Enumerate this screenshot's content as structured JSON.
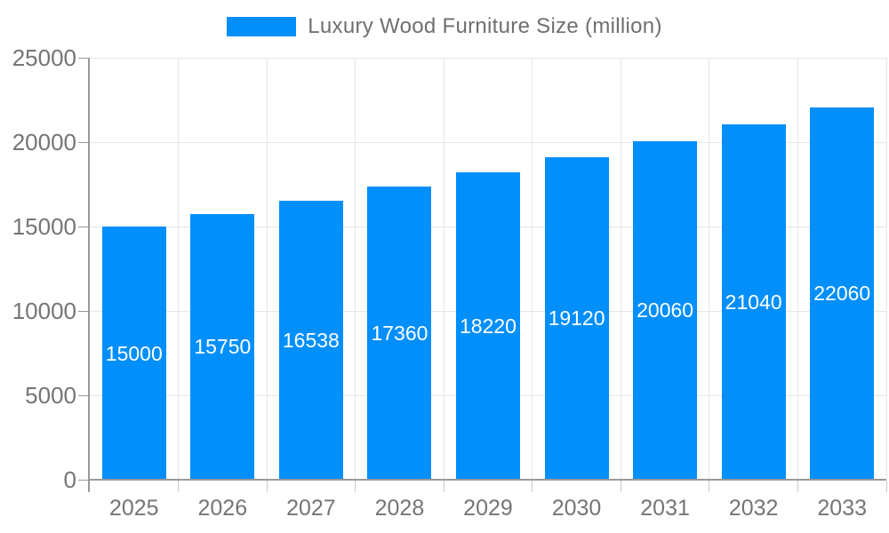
{
  "chart_data": {
    "type": "bar",
    "title": "Luxury Wood Furniture Size (million)",
    "legend_position": "top",
    "categories": [
      "2025",
      "2026",
      "2027",
      "2028",
      "2029",
      "2030",
      "2031",
      "2032",
      "2033"
    ],
    "values": [
      15000,
      15750,
      16538,
      17360,
      18220,
      19120,
      20060,
      21040,
      22060
    ],
    "bar_value_labels": [
      "15000",
      "15750",
      "16538",
      "17360",
      "18220",
      "19120",
      "20060",
      "21040",
      "22060"
    ],
    "xlabel": "",
    "ylabel": "",
    "ylim": [
      0,
      25000
    ],
    "yticks": [
      0,
      5000,
      10000,
      15000,
      20000,
      25000
    ],
    "ytick_labels": [
      "0",
      "5000",
      "10000",
      "15000",
      "20000",
      "25000"
    ],
    "grid": true,
    "colors": {
      "bar": "#008FFB",
      "bar_value_text": "#ffffff",
      "axis_text": "#757575",
      "legend_text": "#6f6f6f",
      "gridline": "#e6e6e6",
      "axis_line": "#9a9a9a",
      "background": "#ffffff"
    }
  }
}
